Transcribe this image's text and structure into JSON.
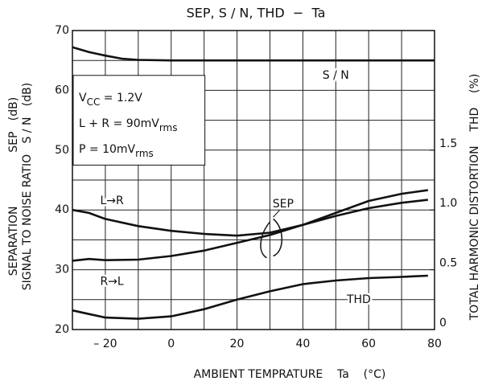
{
  "chart_data": {
    "type": "line",
    "title": "SEP, S / N, THD  −  Ta",
    "x_label": "AMBIENT TEMPRATURE    Ta    (°C)",
    "y_label_outer": "SEPARATION               SEP   (dB)",
    "y_label_inner": "SIGNAL TO NOISE RATIO   S / N   (dB)",
    "y2_label": "TOTAL HARMONIC DISTORTION    THD    (%)",
    "xlim": [
      -30,
      80
    ],
    "xticks": [
      {
        "value": -20,
        "label": "– 20"
      },
      0,
      20,
      40,
      60,
      80
    ],
    "ylim": [
      20,
      70
    ],
    "yticks": [
      20,
      30,
      40,
      50,
      60,
      70
    ],
    "y2lim": [
      0,
      2.5
    ],
    "y2ticks": [
      0,
      0.5,
      {
        "value": 1,
        "label": "1.0"
      },
      1.5
    ],
    "minor_xticks": [
      -30,
      -10,
      10,
      30,
      50,
      70
    ],
    "minor_yticks": [
      25,
      35,
      45,
      55,
      65
    ],
    "grid": true,
    "sep_label": "SEP",
    "conditions": [
      {
        "text": "V",
        "sub": "CC",
        "rest": " = 1.2V"
      },
      {
        "text": "L + R = 90mV",
        "sub": "rms",
        "rest": ""
      },
      {
        "text": "P = 10mV",
        "sub": "rms",
        "rest": ""
      }
    ],
    "series": [
      {
        "name": "S / N",
        "color": "#111111",
        "x": [
          -30,
          -25,
          -20,
          -15,
          -10,
          0,
          20,
          40,
          60,
          80
        ],
        "values": [
          67.2,
          66.4,
          65.8,
          65.3,
          65.1,
          65,
          65,
          65,
          65,
          65
        ]
      },
      {
        "name": "L→R",
        "color": "#111111",
        "x": [
          -30,
          -25,
          -20,
          -10,
          0,
          10,
          20,
          30,
          40,
          50,
          60,
          70,
          78
        ],
        "values": [
          40,
          39.5,
          38.5,
          37.3,
          36.5,
          36,
          35.7,
          36.2,
          37.5,
          39,
          40.3,
          41.2,
          41.7
        ]
      },
      {
        "name": "R→L",
        "color": "#111111",
        "x": [
          -30,
          -25,
          -20,
          -10,
          0,
          10,
          20,
          30,
          40,
          50,
          60,
          70,
          78
        ],
        "values": [
          31.5,
          31.8,
          31.6,
          31.7,
          32.3,
          33.2,
          34.5,
          35.8,
          37.5,
          39.5,
          41.5,
          42.7,
          43.3
        ]
      },
      {
        "name": "THD",
        "color": "#111111",
        "axis": "y2",
        "x": [
          -30,
          -25,
          -20,
          -10,
          0,
          10,
          20,
          30,
          40,
          50,
          60,
          70,
          78
        ],
        "values": [
          0.16,
          0.13,
          0.1,
          0.09,
          0.11,
          0.17,
          0.25,
          0.32,
          0.38,
          0.41,
          0.43,
          0.44,
          0.45
        ]
      }
    ]
  }
}
